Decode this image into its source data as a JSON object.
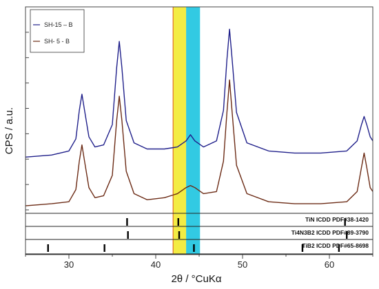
{
  "chart_data": {
    "type": "line",
    "xlabel": "2θ / °CuKα",
    "ylabel": "CPS / a.u.",
    "xlim": [
      25,
      65
    ],
    "ylim": [
      0,
      100
    ],
    "x_ticks": [
      30,
      40,
      50,
      60
    ],
    "grid": false,
    "legend_position": "top-left",
    "series": [
      {
        "name": "SH-15 – B",
        "color": "#1f1f8a",
        "x": [
          25,
          28,
          30,
          30.8,
          31.2,
          31.5,
          31.8,
          32.3,
          33,
          34,
          35,
          35.5,
          35.8,
          36.1,
          36.6,
          37.5,
          39,
          41,
          42.5,
          43.5,
          44,
          44.5,
          45.5,
          47,
          47.8,
          48.2,
          48.5,
          48.8,
          49.3,
          50.5,
          53,
          56,
          59,
          62,
          63.2,
          63.7,
          64,
          64.3,
          64.7,
          65
        ],
        "y": [
          26,
          27,
          29,
          35,
          49,
          57,
          49,
          36,
          31,
          32,
          42,
          70,
          83,
          70,
          44,
          33,
          30,
          30,
          31,
          34,
          37,
          34,
          31,
          34,
          49,
          74,
          89,
          74,
          48,
          33,
          29,
          28,
          28,
          29,
          34,
          42,
          46,
          42,
          36,
          34
        ]
      },
      {
        "name": "SH- 5 - B",
        "color": "#6b2a14",
        "x": [
          25,
          28,
          30,
          30.8,
          31.2,
          31.5,
          31.8,
          32.3,
          33,
          34,
          35,
          35.5,
          35.8,
          36.1,
          36.6,
          37.5,
          39,
          41,
          42.5,
          43.5,
          44,
          44.5,
          45.5,
          47,
          47.8,
          48.2,
          48.5,
          48.8,
          49.3,
          50.5,
          53,
          56,
          59,
          62,
          63.2,
          63.7,
          64,
          64.3,
          64.7,
          65
        ],
        "y": [
          2,
          3,
          4,
          10,
          24,
          32,
          24,
          11,
          6,
          7,
          17,
          44,
          56,
          44,
          19,
          8,
          5,
          6,
          8,
          11,
          12,
          11,
          8,
          9,
          24,
          48,
          64,
          48,
          22,
          8,
          4,
          3,
          3,
          4,
          9,
          21,
          28,
          21,
          11,
          9
        ]
      }
    ],
    "highlight_bands": [
      {
        "x0": 42.0,
        "x1": 43.5,
        "color": "#f2ea30"
      },
      {
        "x0": 43.5,
        "x1": 45.1,
        "color": "#1cc4e0"
      }
    ],
    "reference_patterns": [
      {
        "label": "TiN ICDD PDF#38-1420",
        "peaks": [
          36.7,
          42.6,
          61.8
        ]
      },
      {
        "label": "Ti4N3B2 ICDD PDF#89-3790",
        "peaks": [
          36.8,
          42.7,
          62.0
        ]
      },
      {
        "label": "TiB2 ICDD PDF#65-8698",
        "peaks": [
          27.6,
          34.1,
          44.4,
          56.9,
          61.1
        ]
      }
    ]
  }
}
